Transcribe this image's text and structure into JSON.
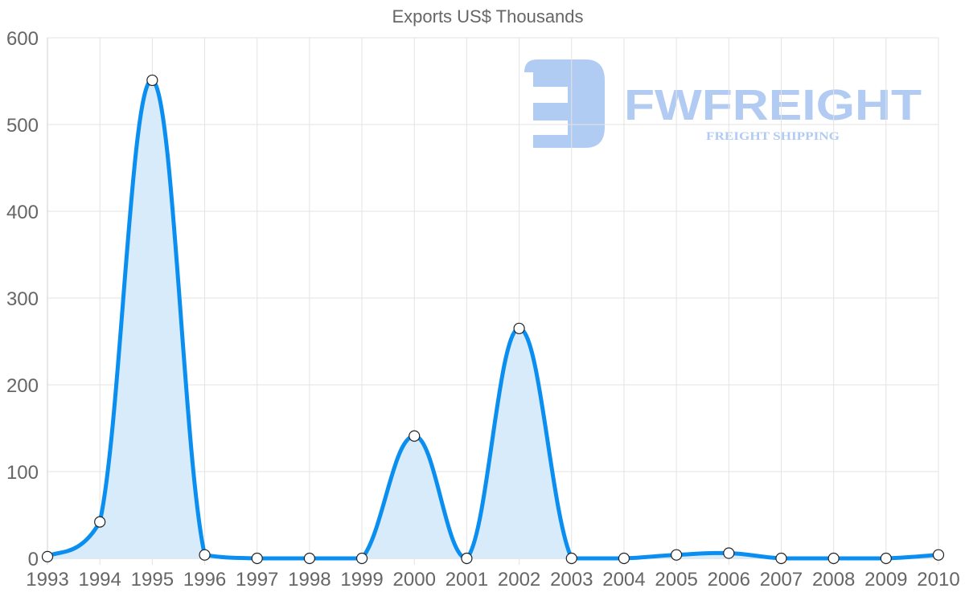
{
  "chart_data": {
    "type": "line",
    "title": "Exports US$ Thousands",
    "xlabel": "",
    "ylabel": "",
    "categories": [
      "1993",
      "1994",
      "1995",
      "1996",
      "1997",
      "1998",
      "1999",
      "2000",
      "2001",
      "2002",
      "2003",
      "2004",
      "2005",
      "2006",
      "2007",
      "2008",
      "2009",
      "2010"
    ],
    "series": [
      {
        "name": "Exports US$ Thousands",
        "values": [
          2,
          42,
          551,
          4,
          0,
          0,
          0,
          141,
          0,
          265,
          0,
          0,
          4,
          6,
          0,
          0,
          0,
          4
        ],
        "color": "#0a8ff0",
        "fill": "#d7ebfb",
        "filled": true
      }
    ],
    "ylim": [
      0,
      600
    ],
    "yticks": [
      0,
      100,
      200,
      300,
      400,
      500,
      600
    ],
    "grid": true,
    "legend": "none"
  },
  "watermark": {
    "brand": "FWFREIGHT",
    "tagline": "FREIGHT SHIPPING",
    "color": "#a9c6f2"
  },
  "colors": {
    "line": "#0a8ff0",
    "area": "#d7ebfb",
    "grid": "#e3e3e3",
    "axis_text": "#666666"
  }
}
